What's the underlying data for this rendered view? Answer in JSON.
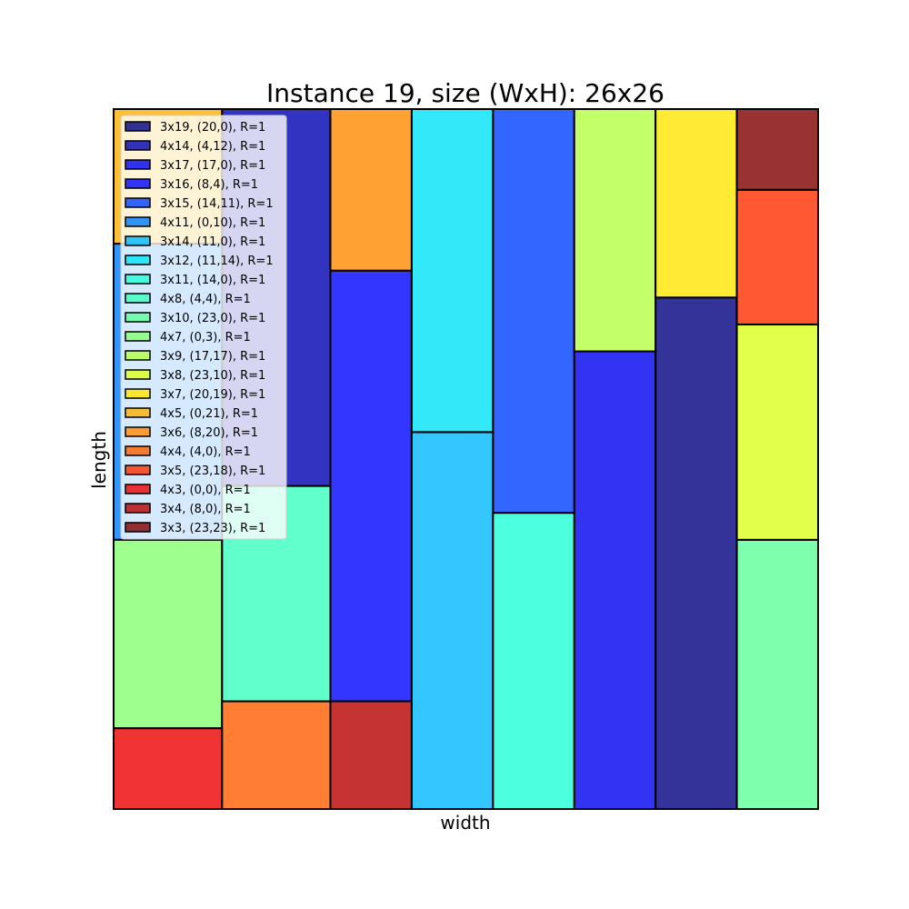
{
  "chart_data": {
    "type": "rectangle-packing",
    "title": "Instance 19, size (WxH): 26x26",
    "xlabel": "width",
    "ylabel": "length",
    "xlim": [
      0,
      26
    ],
    "ylim": [
      0,
      26
    ],
    "grid": false,
    "axis_ticks": false,
    "legend_placement": "top-left",
    "rectangles": [
      {
        "label": "3x19, (20,0), R=1",
        "x": 20,
        "y": 0,
        "w": 3,
        "h": 19,
        "color": "#000080"
      },
      {
        "label": "4x14, (4,12), R=1",
        "x": 4,
        "y": 12,
        "w": 4,
        "h": 14,
        "color": "#0000B2"
      },
      {
        "label": "3x17, (17,0), R=1",
        "x": 17,
        "y": 0,
        "w": 3,
        "h": 17,
        "color": "#0000F1"
      },
      {
        "label": "3x16, (8,4), R=1",
        "x": 8,
        "y": 4,
        "w": 3,
        "h": 16,
        "color": "#0004FF"
      },
      {
        "label": "3x15, (14,11), R=1",
        "x": 14,
        "y": 11,
        "w": 3,
        "h": 15,
        "color": "#0040FF"
      },
      {
        "label": "4x11, (0,10), R=1",
        "x": 0,
        "y": 10,
        "w": 4,
        "h": 11,
        "color": "#007CFF"
      },
      {
        "label": "3x14, (11,0), R=1",
        "x": 11,
        "y": 0,
        "w": 3,
        "h": 14,
        "color": "#00B8FF"
      },
      {
        "label": "3x12, (11,14), R=1",
        "x": 11,
        "y": 14,
        "w": 3,
        "h": 12,
        "color": "#00E4F8"
      },
      {
        "label": "3x11, (14,0), R=1",
        "x": 14,
        "y": 0,
        "w": 3,
        "h": 11,
        "color": "#1FFFD7"
      },
      {
        "label": "4x8, (4,4), R=1",
        "x": 4,
        "y": 4,
        "w": 4,
        "h": 8,
        "color": "#39FFBE"
      },
      {
        "label": "3x10, (23,0), R=1",
        "x": 23,
        "y": 0,
        "w": 3,
        "h": 10,
        "color": "#5DFF9A"
      },
      {
        "label": "4x7, (0,3), R=1",
        "x": 0,
        "y": 3,
        "w": 4,
        "h": 7,
        "color": "#86FF70"
      },
      {
        "label": "3x9, (17,17), R=1",
        "x": 17,
        "y": 17,
        "w": 3,
        "h": 9,
        "color": "#B3FF44"
      },
      {
        "label": "3x8, (23,10), R=1",
        "x": 23,
        "y": 10,
        "w": 3,
        "h": 8,
        "color": "#DBFF1C"
      },
      {
        "label": "3x7, (20,19), R=1",
        "x": 20,
        "y": 19,
        "w": 3,
        "h": 7,
        "color": "#FFE600"
      },
      {
        "label": "4x5, (0,21), R=1",
        "x": 0,
        "y": 21,
        "w": 4,
        "h": 5,
        "color": "#FFB000"
      },
      {
        "label": "3x6, (8,20), R=1",
        "x": 8,
        "y": 20,
        "w": 3,
        "h": 6,
        "color": "#FF8900"
      },
      {
        "label": "4x4, (4,0), R=1",
        "x": 4,
        "y": 0,
        "w": 4,
        "h": 4,
        "color": "#FF5E00"
      },
      {
        "label": "3x5, (23,18), R=1",
        "x": 23,
        "y": 18,
        "w": 3,
        "h": 5,
        "color": "#FF2E00"
      },
      {
        "label": "4x3, (0,0), R=1",
        "x": 0,
        "y": 0,
        "w": 4,
        "h": 3,
        "color": "#EC0000"
      },
      {
        "label": "3x4, (8,0), R=1",
        "x": 8,
        "y": 0,
        "w": 3,
        "h": 4,
        "color": "#B60000"
      },
      {
        "label": "3x3, (23,23), R=1",
        "x": 23,
        "y": 23,
        "w": 3,
        "h": 3,
        "color": "#800000"
      }
    ]
  }
}
